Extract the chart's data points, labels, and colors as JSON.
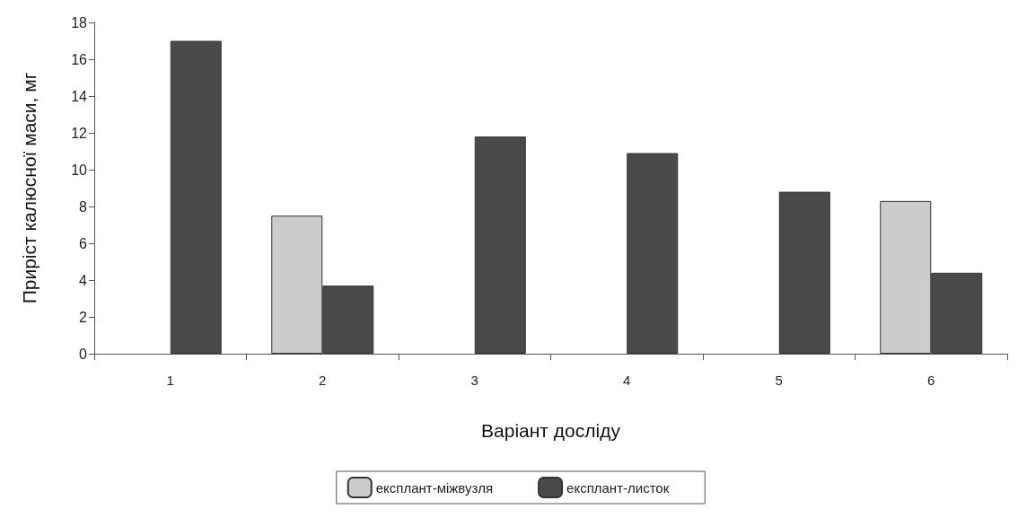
{
  "chart_data": {
    "type": "bar",
    "xlabel": "Варіант досліду",
    "ylabel": "Приріст калюсної маси, мг",
    "categories": [
      "1",
      "2",
      "3",
      "4",
      "5",
      "6"
    ],
    "series": [
      {
        "name": "експлант-міжвузля",
        "color": "#cccccc",
        "values": [
          null,
          7.5,
          null,
          null,
          null,
          8.3
        ]
      },
      {
        "name": "експлант-листок",
        "color": "#4a4a4a",
        "values": [
          17.0,
          3.7,
          11.8,
          10.9,
          8.8,
          4.4
        ]
      }
    ],
    "ylim": [
      0,
      18
    ],
    "yticks": [
      0,
      2,
      4,
      6,
      8,
      10,
      12,
      14,
      16,
      18
    ],
    "grid": false,
    "legend": "bottom"
  }
}
